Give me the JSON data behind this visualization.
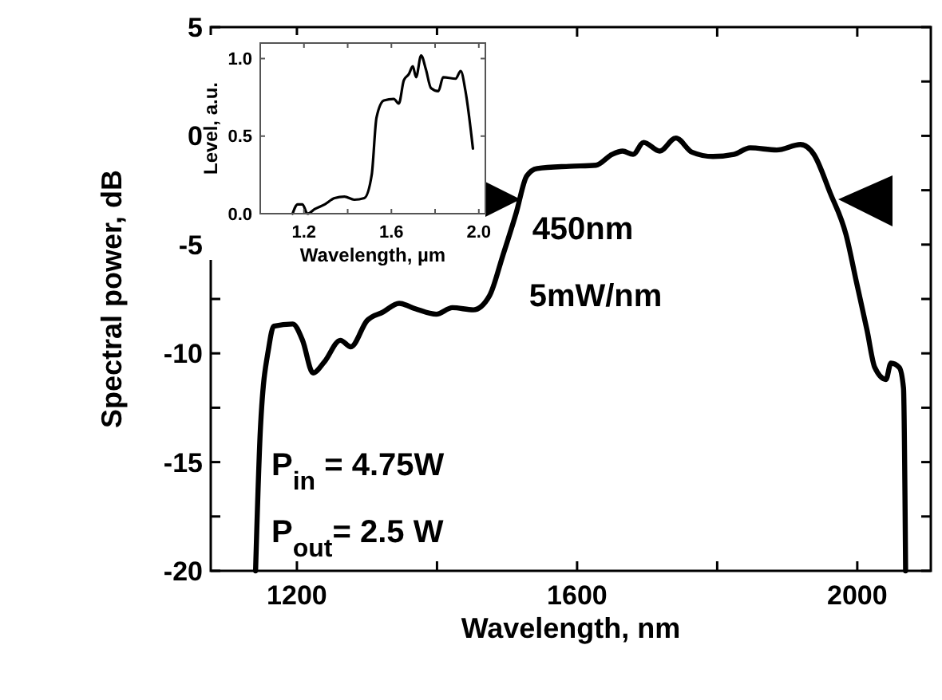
{
  "chart_data": [
    {
      "type": "line",
      "xlabel": "Wavelength, nm",
      "ylabel": "Spectral power, dB",
      "xlim": [
        1077,
        2105
      ],
      "ylim": [
        -20,
        5
      ],
      "xticks": [
        1200,
        {
          "value": 1400,
          "label": null
        },
        1600,
        {
          "value": 1800,
          "label": null
        },
        2000
      ],
      "yticks": [
        5,
        {
          "value": 2.5,
          "label": null
        },
        0,
        {
          "value": -2.5,
          "label": null
        },
        -5,
        {
          "value": -7.5,
          "label": null
        },
        -10,
        {
          "value": -12.5,
          "label": null
        },
        -15,
        {
          "value": -17.5,
          "label": null
        },
        -20
      ],
      "grid": false,
      "line_style": "solid",
      "series": [
        {
          "color": "#000000",
          "x": [
            1141,
            1148,
            1160,
            1167,
            1194,
            1208,
            1223,
            1239,
            1262,
            1277,
            1300,
            1323,
            1346,
            1369,
            1399,
            1422,
            1452,
            1475,
            1494,
            1513,
            1528,
            1543,
            1589,
            1627,
            1650,
            1665,
            1680,
            1695,
            1718,
            1741,
            1764,
            1794,
            1824,
            1847,
            1885,
            1919,
            1938,
            1961,
            1984,
            1999,
            2014,
            2025,
            2041,
            2048,
            2060,
            2066,
            2069
          ],
          "values": [
            -20,
            -13.4,
            -9.7,
            -8.75,
            -8.65,
            -9.4,
            -10.9,
            -10.4,
            -9.4,
            -9.7,
            -8.5,
            -8.1,
            -7.7,
            -7.95,
            -8.2,
            -7.9,
            -8.0,
            -7.35,
            -5.5,
            -3.55,
            -1.85,
            -1.5,
            -1.4,
            -1.35,
            -0.85,
            -0.7,
            -0.85,
            -0.3,
            -0.7,
            -0.1,
            -0.75,
            -0.95,
            -0.85,
            -0.55,
            -0.65,
            -0.4,
            -0.85,
            -2.6,
            -4.55,
            -6.75,
            -8.95,
            -10.65,
            -11.2,
            -10.45,
            -10.65,
            -11.6,
            -20
          ]
        }
      ],
      "annotations": [
        "450nm",
        "5mW/nm",
        "P$_{in}$  = 4.75W",
        "P$_{out}$= 2.5 W"
      ]
    },
    {
      "type": "line",
      "xlabel": "Wavelength, µm",
      "ylabel": "Level, a.u.",
      "xlim": [
        1.0,
        2.03
      ],
      "ylim": [
        0,
        1.1
      ],
      "xticks": [
        {
          "value": 1.0,
          "label": null
        },
        1.2,
        {
          "value": 1.4,
          "label": null
        },
        1.6,
        {
          "value": 1.8,
          "label": null
        },
        {
          "value": 2.0,
          "label": "2.0"
        }
      ],
      "yticks": [
        {
          "value": 0,
          "label": "0.0"
        },
        0.5,
        {
          "value": 1,
          "label": "1.0"
        }
      ],
      "grid": false,
      "line_style": "solid",
      "series": [
        {
          "color": "#000000",
          "x": [
            1.148,
            1.171,
            1.193,
            1.216,
            1.25,
            1.295,
            1.34,
            1.385,
            1.43,
            1.476,
            1.51,
            1.532,
            1.566,
            1.611,
            1.634,
            1.657,
            1.68,
            1.698,
            1.713,
            1.736,
            1.758,
            1.781,
            1.815,
            1.837,
            1.894,
            1.917,
            1.939,
            1.973
          ],
          "values": [
            0,
            0.06,
            0.06,
            0,
            0.03,
            0.06,
            0.1,
            0.11,
            0.09,
            0.1,
            0.25,
            0.62,
            0.73,
            0.74,
            0.71,
            0.86,
            0.9,
            0.95,
            0.88,
            1.02,
            0.93,
            0.81,
            0.79,
            0.88,
            0.87,
            0.92,
            0.79,
            0.42
          ]
        }
      ]
    }
  ]
}
